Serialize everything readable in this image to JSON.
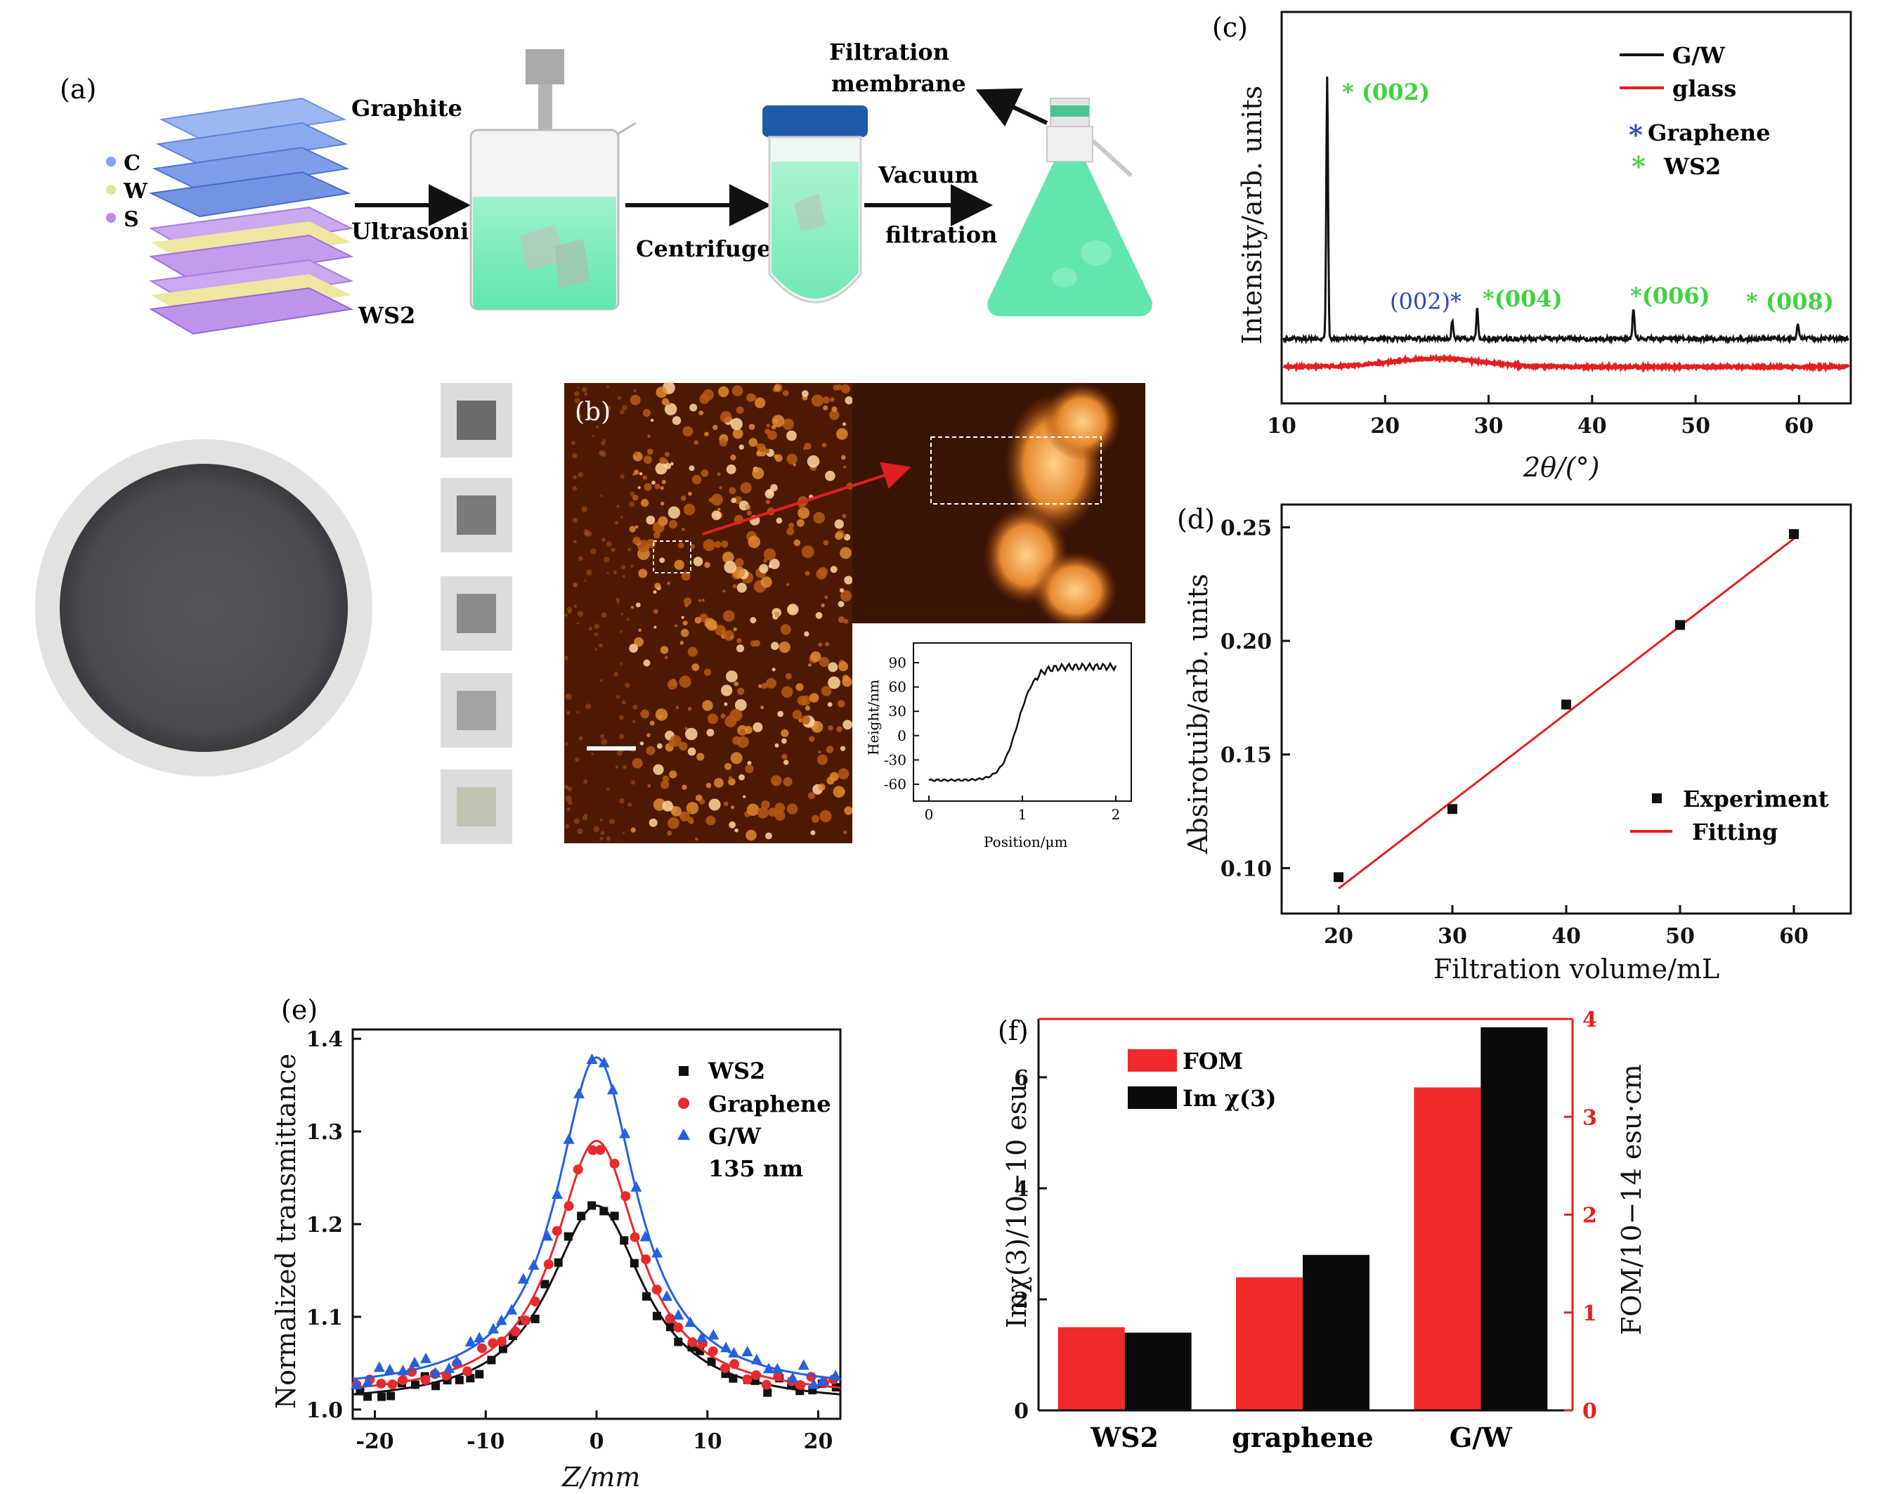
{
  "panels": {
    "a": {
      "tag": "(a)",
      "legend": [
        "C",
        "W",
        "S"
      ],
      "labels": {
        "graphite": "Graphite",
        "ws2": "WS2",
        "ultrasonic": "Ultrasonic",
        "centrifuge": "Centrifuge",
        "vacuum": "Vacuum",
        "filtration": "filtration",
        "membrane_l1": "Filtration",
        "membrane_l2": "membrane"
      }
    },
    "b": {
      "tag": "(b)",
      "inset": {
        "xlabel": "Position/μm",
        "ylabel": "Height/nm",
        "xticks": [
          "0",
          "1",
          "2"
        ],
        "yticks": [
          "90",
          "60",
          "30",
          "0",
          "-30",
          "-60"
        ]
      }
    }
  },
  "chart_data": [
    {
      "id": "c",
      "tag": "(c)",
      "type": "line",
      "xlabel": "2θ/(°)",
      "ylabel": "Intensity/arb. units",
      "xlim": [
        10,
        65
      ],
      "xticks": [
        "10",
        "20",
        "30",
        "40",
        "50",
        "60"
      ],
      "series": [
        {
          "name": "G/W",
          "color": "#000000",
          "peaks_x": [
            14.4,
            26.5,
            28.9,
            44.0,
            59.9
          ]
        },
        {
          "name": "glass",
          "color": "#e32020"
        }
      ],
      "legend_extra": [
        {
          "marker": "*",
          "color": "#2b4bb8",
          "label": "Graphene"
        },
        {
          "marker": "*",
          "color": "#3fd33f",
          "label": "WS2"
        }
      ],
      "annotations": [
        "* (002)",
        "(002)*",
        "*(004)",
        "*(006)",
        "* (008)"
      ]
    },
    {
      "id": "d",
      "tag": "(d)",
      "type": "scatter",
      "xlabel": "Filtration volume/mL",
      "ylabel": "Absirotuib/arb. units",
      "xlim": [
        15,
        65
      ],
      "ylim": [
        0.08,
        0.26
      ],
      "xticks": [
        "20",
        "30",
        "40",
        "50",
        "60"
      ],
      "yticks": [
        "0.10",
        "0.15",
        "0.20",
        "0.25"
      ],
      "x": [
        20,
        30,
        40,
        50,
        60
      ],
      "y": [
        0.096,
        0.126,
        0.172,
        0.207,
        0.247
      ],
      "fit": {
        "x": [
          20,
          60
        ],
        "y": [
          0.091,
          0.245
        ]
      },
      "legend": [
        "Experiment",
        "Fitting"
      ]
    },
    {
      "id": "e",
      "tag": "(e)",
      "type": "scatter",
      "xlabel": "Z/mm",
      "ylabel": "Normalized transmittance",
      "xlim": [
        -22,
        22
      ],
      "ylim": [
        0.99,
        1.41
      ],
      "xticks": [
        "-20",
        "-10",
        "0",
        "10",
        "20"
      ],
      "yticks": [
        "1.0",
        "1.1",
        "1.2",
        "1.3",
        "1.4"
      ],
      "series": [
        {
          "name": "WS2",
          "color": "#111111",
          "marker": "square",
          "peak": 1.22,
          "width": 5.2
        },
        {
          "name": "Graphene",
          "color": "#e52b2b",
          "marker": "circle",
          "peak": 1.29,
          "width": 4.6
        },
        {
          "name": "G/W",
          "color": "#2460e0",
          "marker": "triangle",
          "peak": 1.38,
          "width": 4.4
        }
      ],
      "legend_note": "135 nm"
    },
    {
      "id": "f",
      "tag": "(f)",
      "type": "bar",
      "categories": [
        "WS2",
        "graphene",
        "G/W"
      ],
      "series": [
        {
          "name": "FOM",
          "color": "#f02a2a",
          "axis": "right",
          "values": [
            0.85,
            1.36,
            3.3
          ]
        },
        {
          "name": "Im χ(3)",
          "color": "#0a0a0a",
          "axis": "left",
          "values": [
            1.4,
            2.8,
            6.9
          ]
        }
      ],
      "ylabel_left": "Imχ(3)/10−10 esu",
      "ylabel_right": "FOM/10−14 esu·cm",
      "ylim_left": [
        0,
        7.05
      ],
      "ylim_right": [
        0,
        4
      ],
      "yticks_left": [
        "0",
        "2",
        "4",
        "6"
      ],
      "yticks_right": [
        "0",
        "1",
        "2",
        "3",
        "4"
      ]
    }
  ]
}
